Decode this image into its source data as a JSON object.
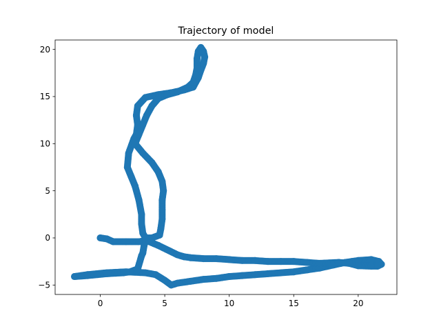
{
  "chart_data": {
    "type": "scatter",
    "title": "Trajectory of model",
    "xlabel": "",
    "ylabel": "",
    "xlim": [
      -3.5,
      23.0
    ],
    "ylim": [
      -6.0,
      21.0
    ],
    "xticks": [
      0,
      5,
      10,
      15,
      20
    ],
    "yticks": [
      -5,
      0,
      5,
      10,
      15,
      20
    ],
    "grid": false,
    "legend": "none",
    "series": [
      {
        "color": "#1f77b4",
        "points": [
          [
            0,
            0
          ],
          [
            0.5,
            -0.1
          ],
          [
            1,
            -0.4
          ],
          [
            2,
            -0.4
          ],
          [
            3,
            -0.4
          ],
          [
            3.5,
            -0.3
          ],
          [
            3.4,
            -0.8
          ],
          [
            3.3,
            -1.6
          ],
          [
            3.2,
            -1.9
          ],
          [
            2.9,
            -3.3
          ],
          [
            2.3,
            -3.6
          ],
          [
            1.8,
            -3.7
          ],
          [
            0.5,
            -3.8
          ],
          [
            -1,
            -4.0
          ],
          [
            -2,
            -4.1
          ],
          [
            -1.0,
            -3.9
          ],
          [
            0.5,
            -3.7
          ],
          [
            2.0,
            -3.6
          ],
          [
            3.5,
            -3.7
          ],
          [
            4.3,
            -3.9
          ],
          [
            5.0,
            -4.5
          ],
          [
            5.5,
            -5.0
          ],
          [
            6.0,
            -4.8
          ],
          [
            7.0,
            -4.6
          ],
          [
            8.0,
            -4.4
          ],
          [
            9.0,
            -4.3
          ],
          [
            10.0,
            -4.1
          ],
          [
            11.0,
            -4.0
          ],
          [
            12.0,
            -3.9
          ],
          [
            13.0,
            -3.8
          ],
          [
            14.0,
            -3.7
          ],
          [
            15.0,
            -3.6
          ],
          [
            16.0,
            -3.4
          ],
          [
            17.0,
            -3.2
          ],
          [
            18.0,
            -2.9
          ],
          [
            19.0,
            -2.6
          ],
          [
            20.0,
            -2.4
          ],
          [
            21.0,
            -2.3
          ],
          [
            21.6,
            -2.5
          ],
          [
            21.8,
            -2.8
          ],
          [
            21.5,
            -3.0
          ],
          [
            21.0,
            -3.0
          ],
          [
            20.0,
            -2.95
          ],
          [
            19.3,
            -2.7
          ],
          [
            18.5,
            -2.6
          ],
          [
            17.0,
            -2.7
          ],
          [
            16.0,
            -2.6
          ],
          [
            15.0,
            -2.5
          ],
          [
            14.0,
            -2.5
          ],
          [
            13.0,
            -2.5
          ],
          [
            12.0,
            -2.4
          ],
          [
            11.0,
            -2.4
          ],
          [
            10.0,
            -2.3
          ],
          [
            9.0,
            -2.2
          ],
          [
            8.0,
            -2.2
          ],
          [
            7.0,
            -2.1
          ],
          [
            6.5,
            -2.0
          ],
          [
            6.0,
            -1.8
          ],
          [
            5.4,
            -1.4
          ],
          [
            4.5,
            -0.8
          ],
          [
            3.8,
            -0.4
          ],
          [
            3.5,
            0
          ],
          [
            3.3,
            0.5
          ],
          [
            3.2,
            1.5
          ],
          [
            3.2,
            2.5
          ],
          [
            3.0,
            4.0
          ],
          [
            2.7,
            5.5
          ],
          [
            2.4,
            6.5
          ],
          [
            2.1,
            7.5
          ],
          [
            2.2,
            9.0
          ],
          [
            2.6,
            10.5
          ],
          [
            2.8,
            11.0
          ],
          [
            2.9,
            12.0
          ],
          [
            2.8,
            13.0
          ],
          [
            2.9,
            14.0
          ],
          [
            3.5,
            14.9
          ],
          [
            4.5,
            15.2
          ],
          [
            5.5,
            15.4
          ],
          [
            6.5,
            15.7
          ],
          [
            7.2,
            16.0
          ],
          [
            7.6,
            17.0
          ],
          [
            7.8,
            17.8
          ],
          [
            8.0,
            18.5
          ],
          [
            8.1,
            19.2
          ],
          [
            8.0,
            19.8
          ],
          [
            7.8,
            20.2
          ],
          [
            7.6,
            19.8
          ],
          [
            7.5,
            19.0
          ],
          [
            7.5,
            18.0
          ],
          [
            7.4,
            17.3
          ],
          [
            7.2,
            16.5
          ],
          [
            6.8,
            16.0
          ],
          [
            6.0,
            15.5
          ],
          [
            5.2,
            15.2
          ],
          [
            4.5,
            14.8
          ],
          [
            4.0,
            14.0
          ],
          [
            3.6,
            13.0
          ],
          [
            3.3,
            12.0
          ],
          [
            3.0,
            11.0
          ],
          [
            2.7,
            10.0
          ],
          [
            3.3,
            9.0
          ],
          [
            4.0,
            8.0
          ],
          [
            4.5,
            7.0
          ],
          [
            4.8,
            6.0
          ],
          [
            4.9,
            5.0
          ],
          [
            4.8,
            4.0
          ],
          [
            4.8,
            3.0
          ],
          [
            4.8,
            2.0
          ],
          [
            4.7,
            1.0
          ],
          [
            4.6,
            0.3
          ],
          [
            4.0,
            0
          ],
          [
            3.5,
            0
          ]
        ]
      }
    ]
  }
}
